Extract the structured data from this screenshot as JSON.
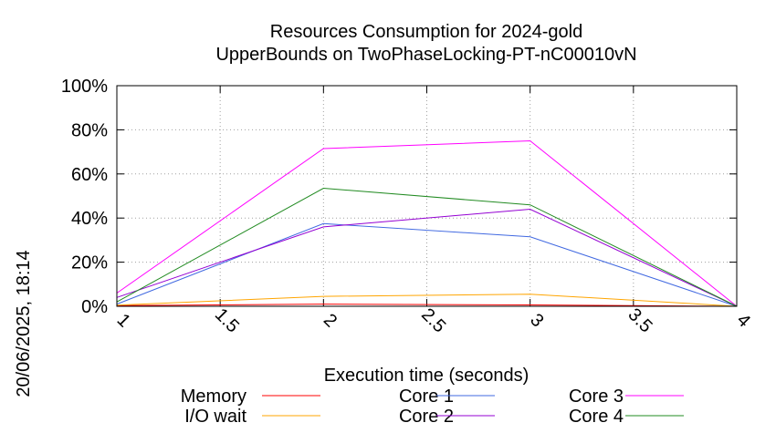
{
  "chart_data": {
    "type": "line",
    "title_line1": "Resources Consumption for 2024-gold",
    "title_line2": "UpperBounds on TwoPhaseLocking-PT-nC00010vN",
    "xlabel": "Execution time (seconds)",
    "ylabel": "",
    "side_label": "20/06/2025, 18:14",
    "xlim": [
      1,
      4
    ],
    "ylim": [
      0,
      100
    ],
    "x_ticks": [
      1,
      1.5,
      2,
      2.5,
      3,
      3.5,
      4
    ],
    "x_tick_labels": [
      "1",
      "1.5",
      "2",
      "2.5",
      "3",
      "3.5",
      "4"
    ],
    "y_ticks": [
      0,
      20,
      40,
      60,
      80,
      100
    ],
    "y_tick_labels": [
      "0%",
      "20%",
      "40%",
      "60%",
      "80%",
      "100%"
    ],
    "grid": true,
    "legend_position": "bottom",
    "x": [
      1,
      2,
      3,
      4
    ],
    "series": [
      {
        "name": "Memory",
        "color": "#ff0000",
        "values": [
          0.3,
          1.0,
          0.6,
          0
        ]
      },
      {
        "name": "I/O wait",
        "color": "#ffa500",
        "values": [
          0.5,
          4.5,
          5.5,
          0
        ]
      },
      {
        "name": "Core 1",
        "color": "#4169e1",
        "values": [
          1,
          37.5,
          31.5,
          0
        ]
      },
      {
        "name": "Core 2",
        "color": "#9400d3",
        "values": [
          4,
          36,
          44,
          0
        ]
      },
      {
        "name": "Core 3",
        "color": "#ff00ff",
        "values": [
          6,
          71.5,
          75,
          0
        ]
      },
      {
        "name": "Core 4",
        "color": "#228b22",
        "values": [
          2,
          53.5,
          46,
          0
        ]
      }
    ]
  }
}
